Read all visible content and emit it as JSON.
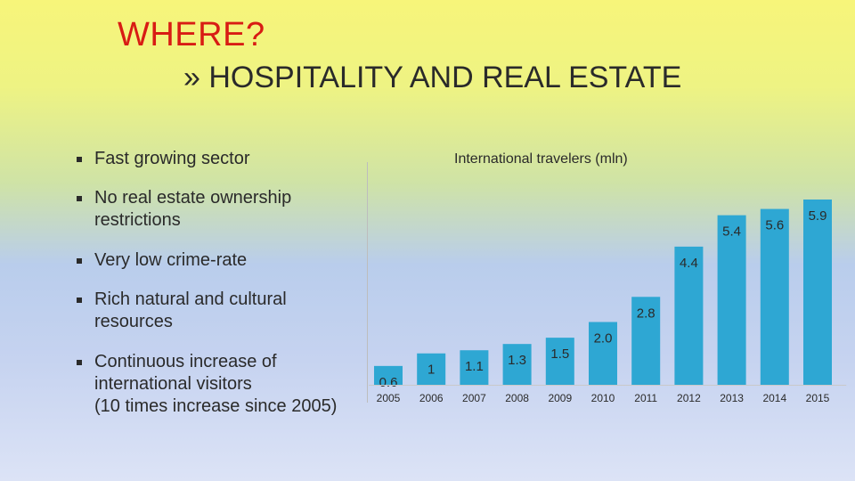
{
  "slide": {
    "title": "WHERE?",
    "subtitle": "» HOSPITALITY AND REAL ESTATE"
  },
  "bullets": [
    "Fast growing sector",
    "No real estate ownership\nrestrictions",
    "Very low crime-rate",
    "Rich natural and cultural\nresources",
    "Continuous increase of\ninternational visitors\n(10 times increase since 2005)"
  ],
  "chart_data": {
    "type": "bar",
    "title": "International travelers (mln)",
    "categories": [
      "2005",
      "2006",
      "2007",
      "2008",
      "2009",
      "2010",
      "2011",
      "2012",
      "2013",
      "2014",
      "2015"
    ],
    "values": [
      0.6,
      1,
      1.1,
      1.3,
      1.5,
      2.0,
      2.8,
      4.4,
      5.4,
      5.6,
      5.9
    ],
    "data_labels": [
      "0.6",
      "1",
      "1.1",
      "1.3",
      "1.5",
      "2.0",
      "2.8",
      "4.4",
      "5.4",
      "5.6",
      "5.9"
    ],
    "xlabel": "",
    "ylabel": "",
    "ylim": [
      0,
      6.5
    ],
    "grid": false,
    "colors": {
      "bar": "#2ea7d3",
      "label": "#2a2a2a"
    }
  }
}
